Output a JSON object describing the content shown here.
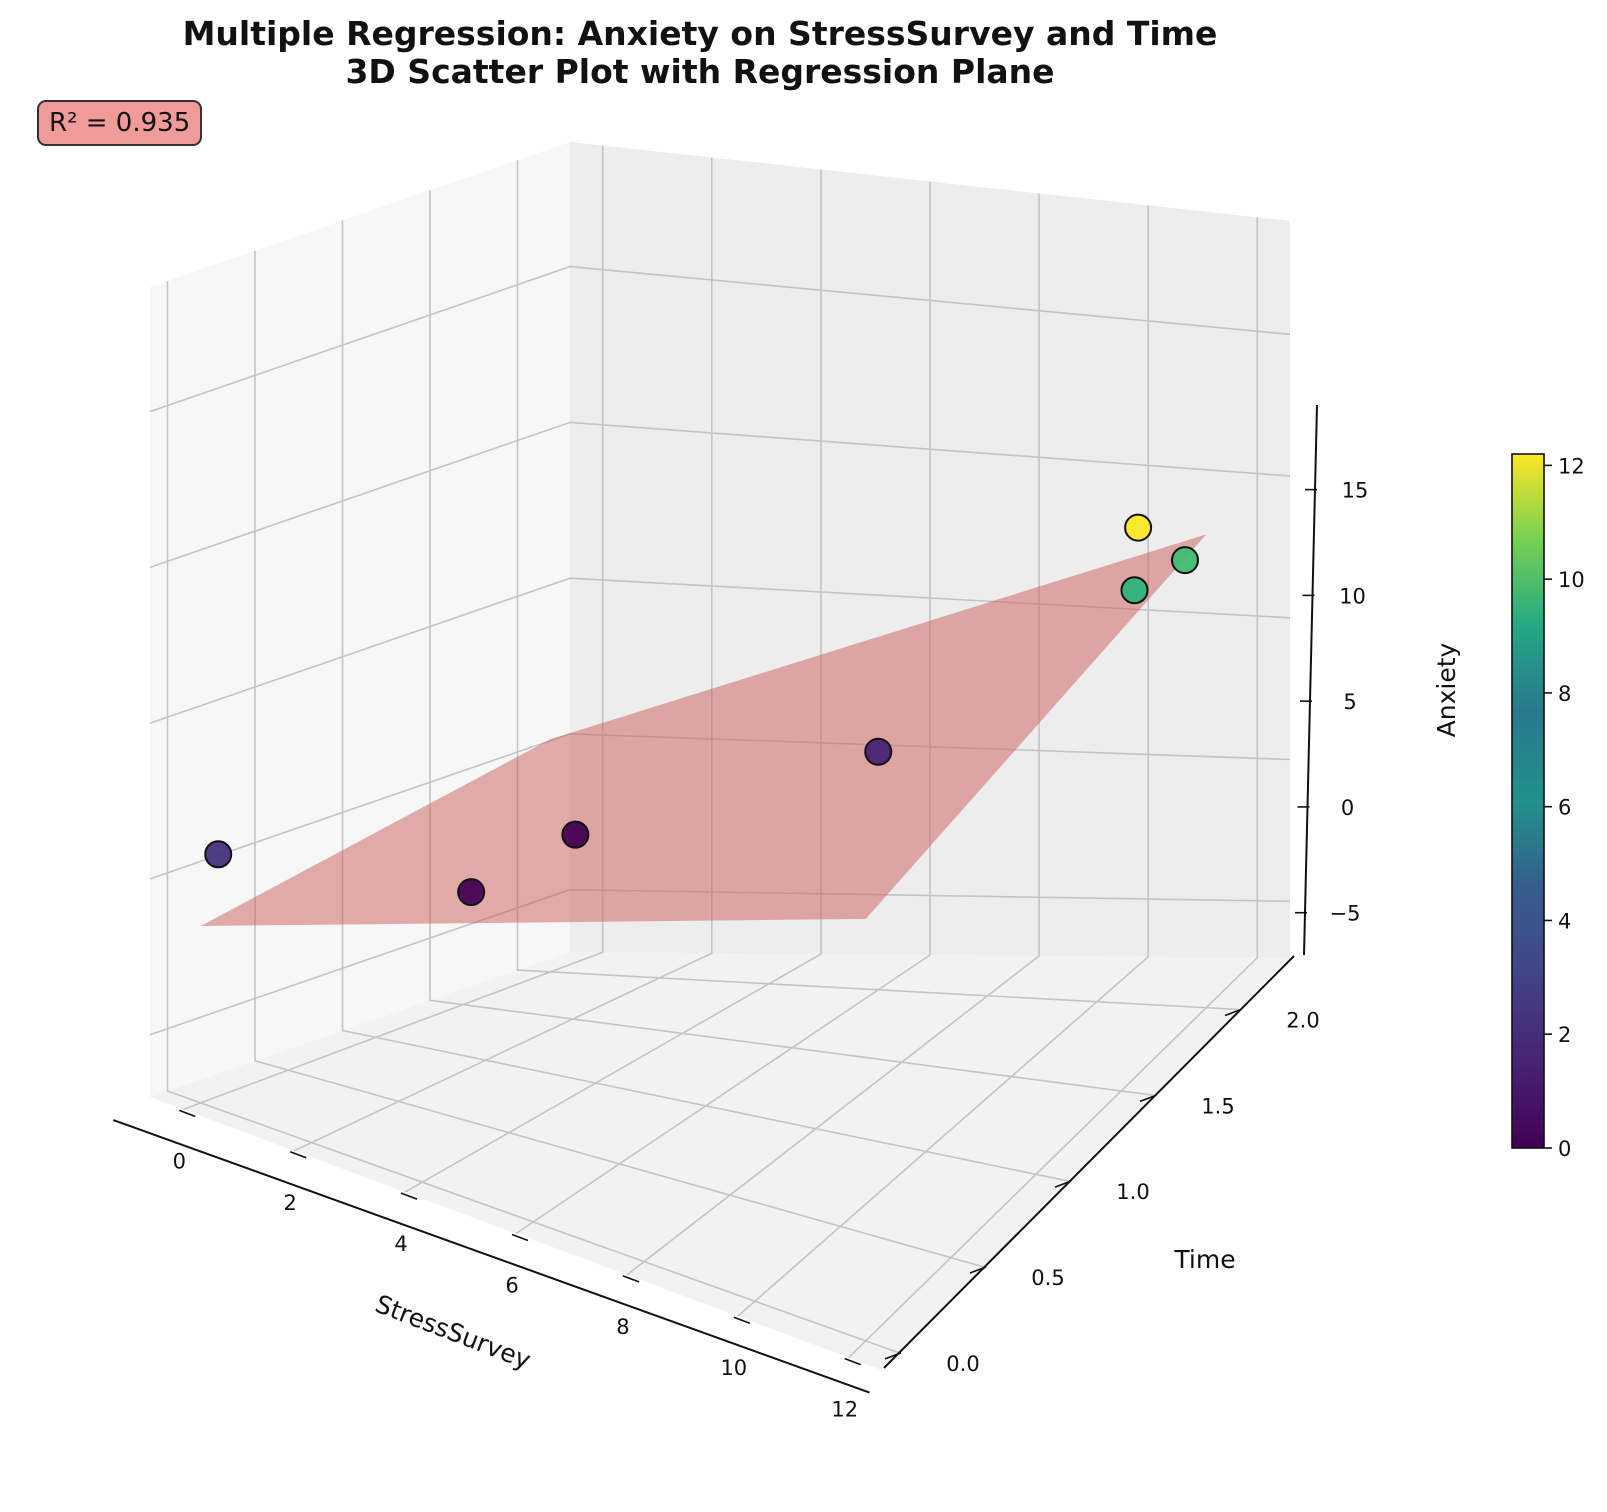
{
  "title_line1": "Multiple Regression: Anxiety on StressSurvey and Time",
  "title_line2": "3D Scatter Plot with Regression Plane",
  "r2_label": "R² = 0.935",
  "chart_data": {
    "type": "scatter",
    "projection": "3d",
    "xlabel": "StressSurvey",
    "ylabel": "Time",
    "zlabel": "Anxiety",
    "xlim": [
      -0.6,
      12.6
    ],
    "ylim": [
      -0.1,
      2.3
    ],
    "zlim": [
      -7,
      19
    ],
    "x_ticks": [
      0,
      2,
      4,
      6,
      8,
      10,
      12
    ],
    "y_ticks": [
      "0.0",
      "0.5",
      "1.0",
      "1.5",
      "2.0"
    ],
    "z_ticks": [
      "−5",
      "0",
      "5",
      "10",
      "15"
    ],
    "colormap": "viridis",
    "colorbar": {
      "min": 0,
      "max": 12.2,
      "ticks": [
        0,
        2,
        4,
        6,
        8,
        10,
        12
      ]
    },
    "plane_color": "#cd5c5c",
    "points": [
      {
        "x": 0,
        "y": 0.1,
        "z": 0.8,
        "color": "#46327e"
      },
      {
        "x": 3,
        "y": 1.2,
        "z": 0.2,
        "color": "#440154"
      },
      {
        "x": 3,
        "y": 0.6,
        "z": 0.1,
        "color": "#440154"
      },
      {
        "x": 6,
        "y": 2.0,
        "z": 1.0,
        "color": "#482475"
      },
      {
        "x": 11,
        "y": 1.9,
        "z": 8.0,
        "color": "#2eb37c"
      },
      {
        "x": 11.3,
        "y": 2.1,
        "z": 8.0,
        "color": "#3fbc73"
      },
      {
        "x": 12,
        "y": 1.6,
        "z": 12.2,
        "color": "#fde725"
      }
    ]
  }
}
